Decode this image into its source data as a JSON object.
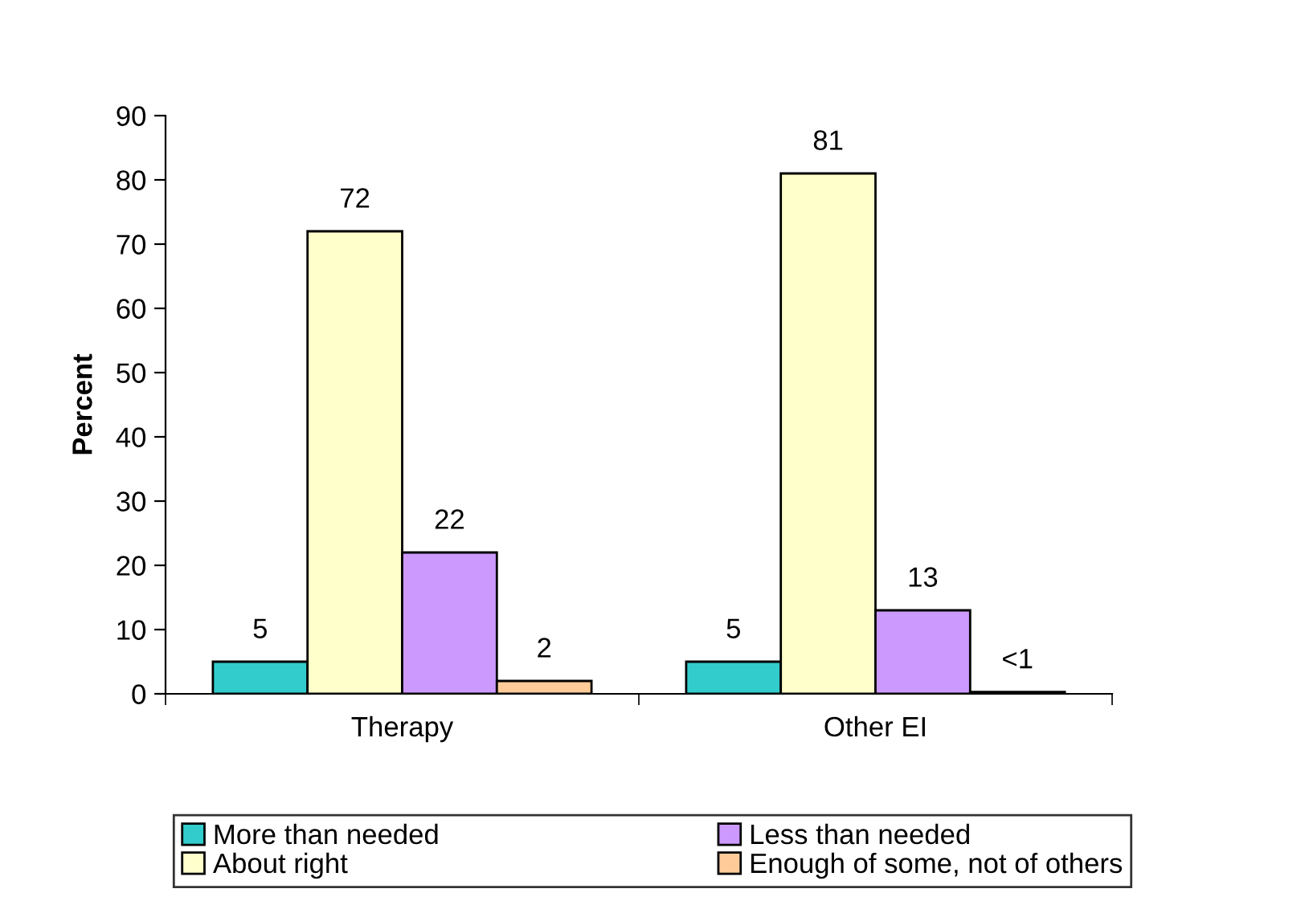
{
  "chart_data": {
    "type": "bar",
    "ylabel": "Percent",
    "categories": [
      "Therapy",
      "Other EI"
    ],
    "series": [
      {
        "name": "More than needed",
        "color": "#33cccc",
        "values": [
          5,
          5
        ],
        "value_labels": [
          "5",
          "5"
        ]
      },
      {
        "name": "About right",
        "color": "#ffffcc",
        "values": [
          72,
          81
        ],
        "value_labels": [
          "72",
          "81"
        ]
      },
      {
        "name": "Less than needed",
        "color": "#cc99ff",
        "values": [
          22,
          13
        ],
        "value_labels": [
          "22",
          "13"
        ]
      },
      {
        "name": "Enough of some, not of others",
        "color": "#ffcc99",
        "values": [
          2,
          0.3
        ],
        "value_labels": [
          "2",
          "<1"
        ]
      }
    ],
    "ylim": [
      0,
      90
    ],
    "yticks": [
      0,
      10,
      20,
      30,
      40,
      50,
      60,
      70,
      80,
      90
    ],
    "grid": false,
    "legend": "bottom"
  }
}
